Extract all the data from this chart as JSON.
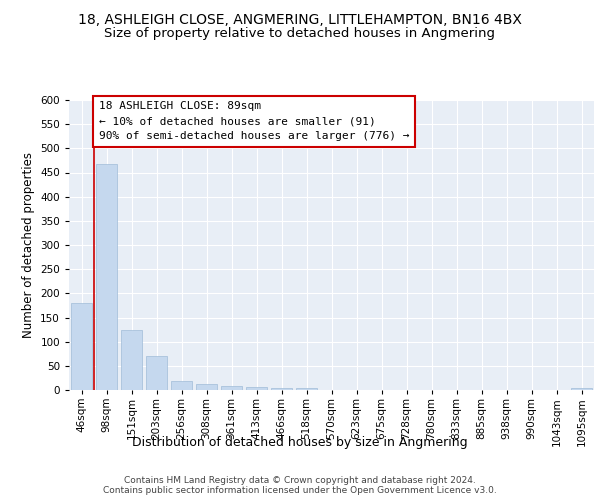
{
  "title1": "18, ASHLEIGH CLOSE, ANGMERING, LITTLEHAMPTON, BN16 4BX",
  "title2": "Size of property relative to detached houses in Angmering",
  "xlabel": "Distribution of detached houses by size in Angmering",
  "ylabel": "Number of detached properties",
  "categories": [
    "46sqm",
    "98sqm",
    "151sqm",
    "203sqm",
    "256sqm",
    "308sqm",
    "361sqm",
    "413sqm",
    "466sqm",
    "518sqm",
    "570sqm",
    "623sqm",
    "675sqm",
    "728sqm",
    "780sqm",
    "833sqm",
    "885sqm",
    "938sqm",
    "990sqm",
    "1043sqm",
    "1095sqm"
  ],
  "values": [
    180,
    468,
    125,
    70,
    18,
    12,
    8,
    6,
    5,
    5,
    0,
    0,
    0,
    0,
    0,
    0,
    0,
    0,
    0,
    0,
    5
  ],
  "bar_color": "#c5d8ee",
  "bar_edge_color": "#a0bcd8",
  "annotation_text": "18 ASHLEIGH CLOSE: 89sqm\n← 10% of detached houses are smaller (91)\n90% of semi-detached houses are larger (776) →",
  "annotation_box_color": "#ffffff",
  "annotation_box_edge": "#cc0000",
  "red_line_color": "#cc0000",
  "ylim": [
    0,
    600
  ],
  "yticks": [
    0,
    50,
    100,
    150,
    200,
    250,
    300,
    350,
    400,
    450,
    500,
    550,
    600
  ],
  "plot_bg_color": "#e8eef6",
  "fig_bg_color": "#ffffff",
  "footer_text": "Contains HM Land Registry data © Crown copyright and database right 2024.\nContains public sector information licensed under the Open Government Licence v3.0.",
  "title1_fontsize": 10,
  "title2_fontsize": 9.5,
  "xlabel_fontsize": 9,
  "ylabel_fontsize": 8.5,
  "tick_fontsize": 7.5,
  "annotation_fontsize": 8,
  "footer_fontsize": 6.5
}
